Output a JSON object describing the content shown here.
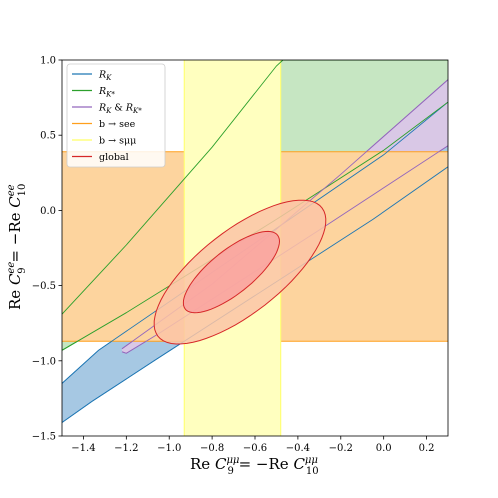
{
  "chart_data": {
    "type": "contour",
    "xlabel": "Re C9μμ = −Re C10μμ",
    "ylabel": "Re C9ee = −Re C10ee",
    "xlabel_parts": {
      "pre": "Re ",
      "sym1": "C",
      "sub1": "9",
      "sup1": "μμ",
      "mid": " = −Re ",
      "sym2": "C",
      "sub2": "10",
      "sup2": "μμ"
    },
    "ylabel_parts": {
      "pre": "Re ",
      "sym1": "C",
      "sub1": "9",
      "sup1": "ee",
      "mid": " = −Re ",
      "sym2": "C",
      "sub2": "10",
      "sup2": "ee"
    },
    "xlim": [
      -1.5,
      0.3
    ],
    "ylim": [
      -1.5,
      1.0
    ],
    "x_ticks": [
      -1.4,
      -1.2,
      -1.0,
      -0.8,
      -0.6,
      -0.4,
      -0.2,
      0.0,
      0.2
    ],
    "x_tick_labels": [
      "−1.4",
      "−1.2",
      "−1.0",
      "−0.8",
      "−0.6",
      "−0.4",
      "−0.2",
      "0.0",
      "0.2"
    ],
    "y_ticks": [
      -1.5,
      -1.0,
      -0.5,
      0.0,
      0.5,
      1.0
    ],
    "y_tick_labels": [
      "−1.5",
      "−1.0",
      "−0.5",
      "0.0",
      "0.5",
      "1.0"
    ],
    "grid": false,
    "legend_position": "top-left",
    "series": [
      {
        "name": "R_K",
        "label": {
          "sym": "R",
          "sub": "K"
        },
        "color": "#1f77b4",
        "fill": "#a6c8e3",
        "band": {
          "upper": [
            [
              -1.5,
              -1.15
            ],
            [
              -1.33,
              -0.93
            ],
            [
              -0.0,
              0.37
            ],
            [
              0.3,
              0.72
            ]
          ],
          "lower": [
            [
              -1.5,
              -1.41
            ],
            [
              -1.36,
              -1.27
            ],
            [
              -1.06,
              -0.99
            ],
            [
              -0.05,
              -0.06
            ],
            [
              0.3,
              0.29
            ]
          ]
        }
      },
      {
        "name": "R_K*",
        "label": {
          "sym": "R",
          "sub": "K*"
        },
        "color": "#2ca02c",
        "fill": "#c6e6c2",
        "band": {
          "upper": [
            [
              -1.5,
              -0.69
            ],
            [
              -1.2,
              -0.23
            ],
            [
              -0.8,
              0.42
            ],
            [
              -0.5,
              0.96
            ],
            [
              -0.47,
              1.0
            ],
            [
              0.3,
              1.0
            ]
          ],
          "lower": [
            [
              -1.5,
              -0.93
            ],
            [
              -1.2,
              -0.68
            ],
            [
              -0.5,
              -0.06
            ],
            [
              0.0,
              0.4
            ],
            [
              0.3,
              0.72
            ]
          ]
        }
      },
      {
        "name": "R_K & R_K*",
        "label": {
          "sym": "R",
          "sub": "K",
          "mid": " & ",
          "sym2": "R",
          "sub2": "K*"
        },
        "color": "#9467bd",
        "fill": "#d9c8e6",
        "band": {
          "upper": [
            [
              -1.22,
              -0.92
            ],
            [
              -0.8,
              -0.49
            ],
            [
              -0.2,
              0.24
            ],
            [
              0.3,
              0.87
            ]
          ],
          "lower": [
            [
              -1.22,
              -0.94
            ],
            [
              -1.2,
              -0.95
            ],
            [
              -1.05,
              -0.82
            ],
            [
              -0.3,
              -0.13
            ],
            [
              0.3,
              0.43
            ]
          ]
        }
      },
      {
        "name": "b → see",
        "label": {
          "text": "b → see"
        },
        "color": "#ff9f1c",
        "fill": "#fdd49e",
        "band_y": [
          -0.87,
          0.39
        ]
      },
      {
        "name": "b → sμμ",
        "label": {
          "text": "b → sμμ"
        },
        "color": "#ffff66",
        "fill": "#ffffbf",
        "band_x": [
          -0.93,
          -0.48
        ]
      },
      {
        "name": "global",
        "label": {
          "text": "global"
        },
        "color": "#d62728",
        "fill": "#f4a582",
        "ellipses": [
          {
            "level": "2σ",
            "cx": -0.67,
            "cy": -0.41,
            "rx": 0.23,
            "ry": 0.58,
            "rotation_deg": 38,
            "fill": "#fbc4a6"
          },
          {
            "level": "1σ",
            "cx": -0.71,
            "cy": -0.41,
            "rx": 0.12,
            "ry": 0.33,
            "rotation_deg": 38,
            "fill": "#f9a2a0"
          }
        ]
      }
    ]
  }
}
